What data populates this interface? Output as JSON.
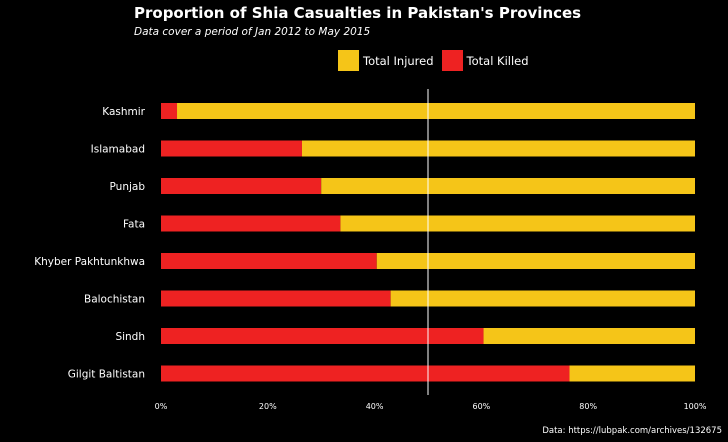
{
  "title": "Proportion of Shia Casualties in Pakistan's Provinces",
  "subtitle": "Data cover a period of Jan 2012  to May 2015",
  "source": "Data: https://lubpak.com/archives/132675",
  "legend": [
    {
      "label": "Total Injured",
      "color": "#F5C518"
    },
    {
      "label": "Total Killed",
      "color": "#EE2222"
    }
  ],
  "chart_data": {
    "type": "bar",
    "orientation": "horizontal",
    "stacked": true,
    "title": "Proportion of Shia Casualties in Pakistan's Provinces",
    "subtitle": "Data cover a period of Jan 2012  to May 2015",
    "categories": [
      "Kashmir",
      "Islamabad",
      "Punjab",
      "Fata",
      "Khyber Pakhtunkhwa",
      "Balochistan",
      "Sindh",
      "Gilgit Baltistan"
    ],
    "series": [
      {
        "name": "Total Killed",
        "color": "#EE2222",
        "values": [
          0.03,
          0.264,
          0.3,
          0.336,
          0.404,
          0.43,
          0.604,
          0.765
        ]
      },
      {
        "name": "Total Injured",
        "color": "#F5C518",
        "values": [
          0.97,
          0.736,
          0.7,
          0.664,
          0.596,
          0.57,
          0.396,
          0.235
        ]
      }
    ],
    "xlim": [
      0,
      1
    ],
    "xticks": [
      0,
      0.2,
      0.4,
      0.6,
      0.8,
      1.0
    ],
    "xtick_labels": [
      "0%",
      "20%",
      "40%",
      "60%",
      "80%",
      "100%"
    ],
    "reference_line": 0.5,
    "legend_position": "top",
    "grid": false
  }
}
